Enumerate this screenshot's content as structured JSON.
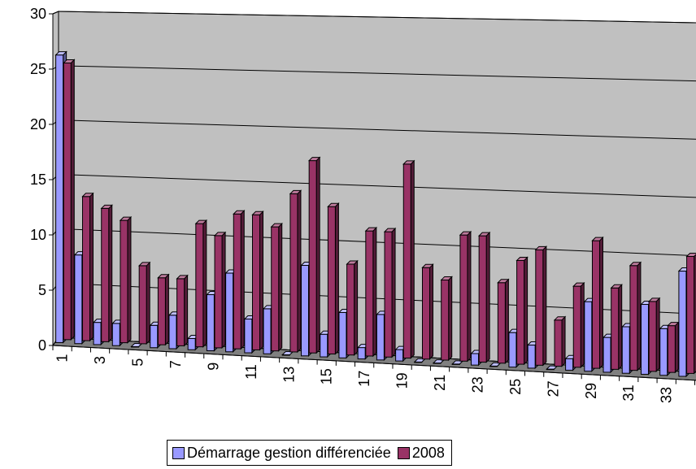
{
  "chart_data": {
    "type": "bar",
    "bar_style": "3d-clustered",
    "categories": [
      "1",
      "2",
      "3",
      "4",
      "5",
      "6",
      "7",
      "8",
      "9",
      "10",
      "11",
      "12",
      "13",
      "14",
      "15",
      "16",
      "17",
      "18",
      "19",
      "20",
      "21",
      "22",
      "23",
      "24",
      "25",
      "26",
      "27",
      "28",
      "29",
      "30",
      "31",
      "32",
      "33",
      "34"
    ],
    "series": [
      {
        "name": "Démarrage gestion différenciée",
        "color": "#9999ff",
        "values": [
          26,
          8,
          2,
          2,
          0,
          2,
          3,
          1,
          5,
          7,
          3,
          4,
          0,
          8,
          2,
          4,
          1,
          4,
          1,
          0,
          0,
          0,
          1,
          0,
          3,
          2,
          0,
          1,
          6,
          3,
          4,
          6,
          4,
          9
        ]
      },
      {
        "name": "2008",
        "color": "#993366",
        "values": [
          25,
          13,
          12,
          11,
          7,
          6,
          6,
          11,
          10,
          12,
          12,
          11,
          14,
          17,
          13,
          8,
          11,
          11,
          17,
          8,
          7,
          11,
          11,
          7,
          9,
          10,
          4,
          7,
          11,
          7,
          9,
          6,
          4,
          10
        ]
      }
    ],
    "xlabel": "",
    "ylabel": "",
    "ylim": [
      0,
      30
    ],
    "yticks": [
      "0",
      "5",
      "10",
      "15",
      "20",
      "25",
      "30"
    ],
    "xtick_labels": [
      "1",
      "3",
      "5",
      "7",
      "9",
      "11",
      "13",
      "15",
      "17",
      "19",
      "21",
      "23",
      "25",
      "27",
      "29",
      "31",
      "33"
    ],
    "grid": true,
    "legend_position": "bottom",
    "colors": {
      "back_wall": "#c0c0c0",
      "floor": "#808080",
      "series1": "#9999ff",
      "series2": "#993366"
    }
  }
}
